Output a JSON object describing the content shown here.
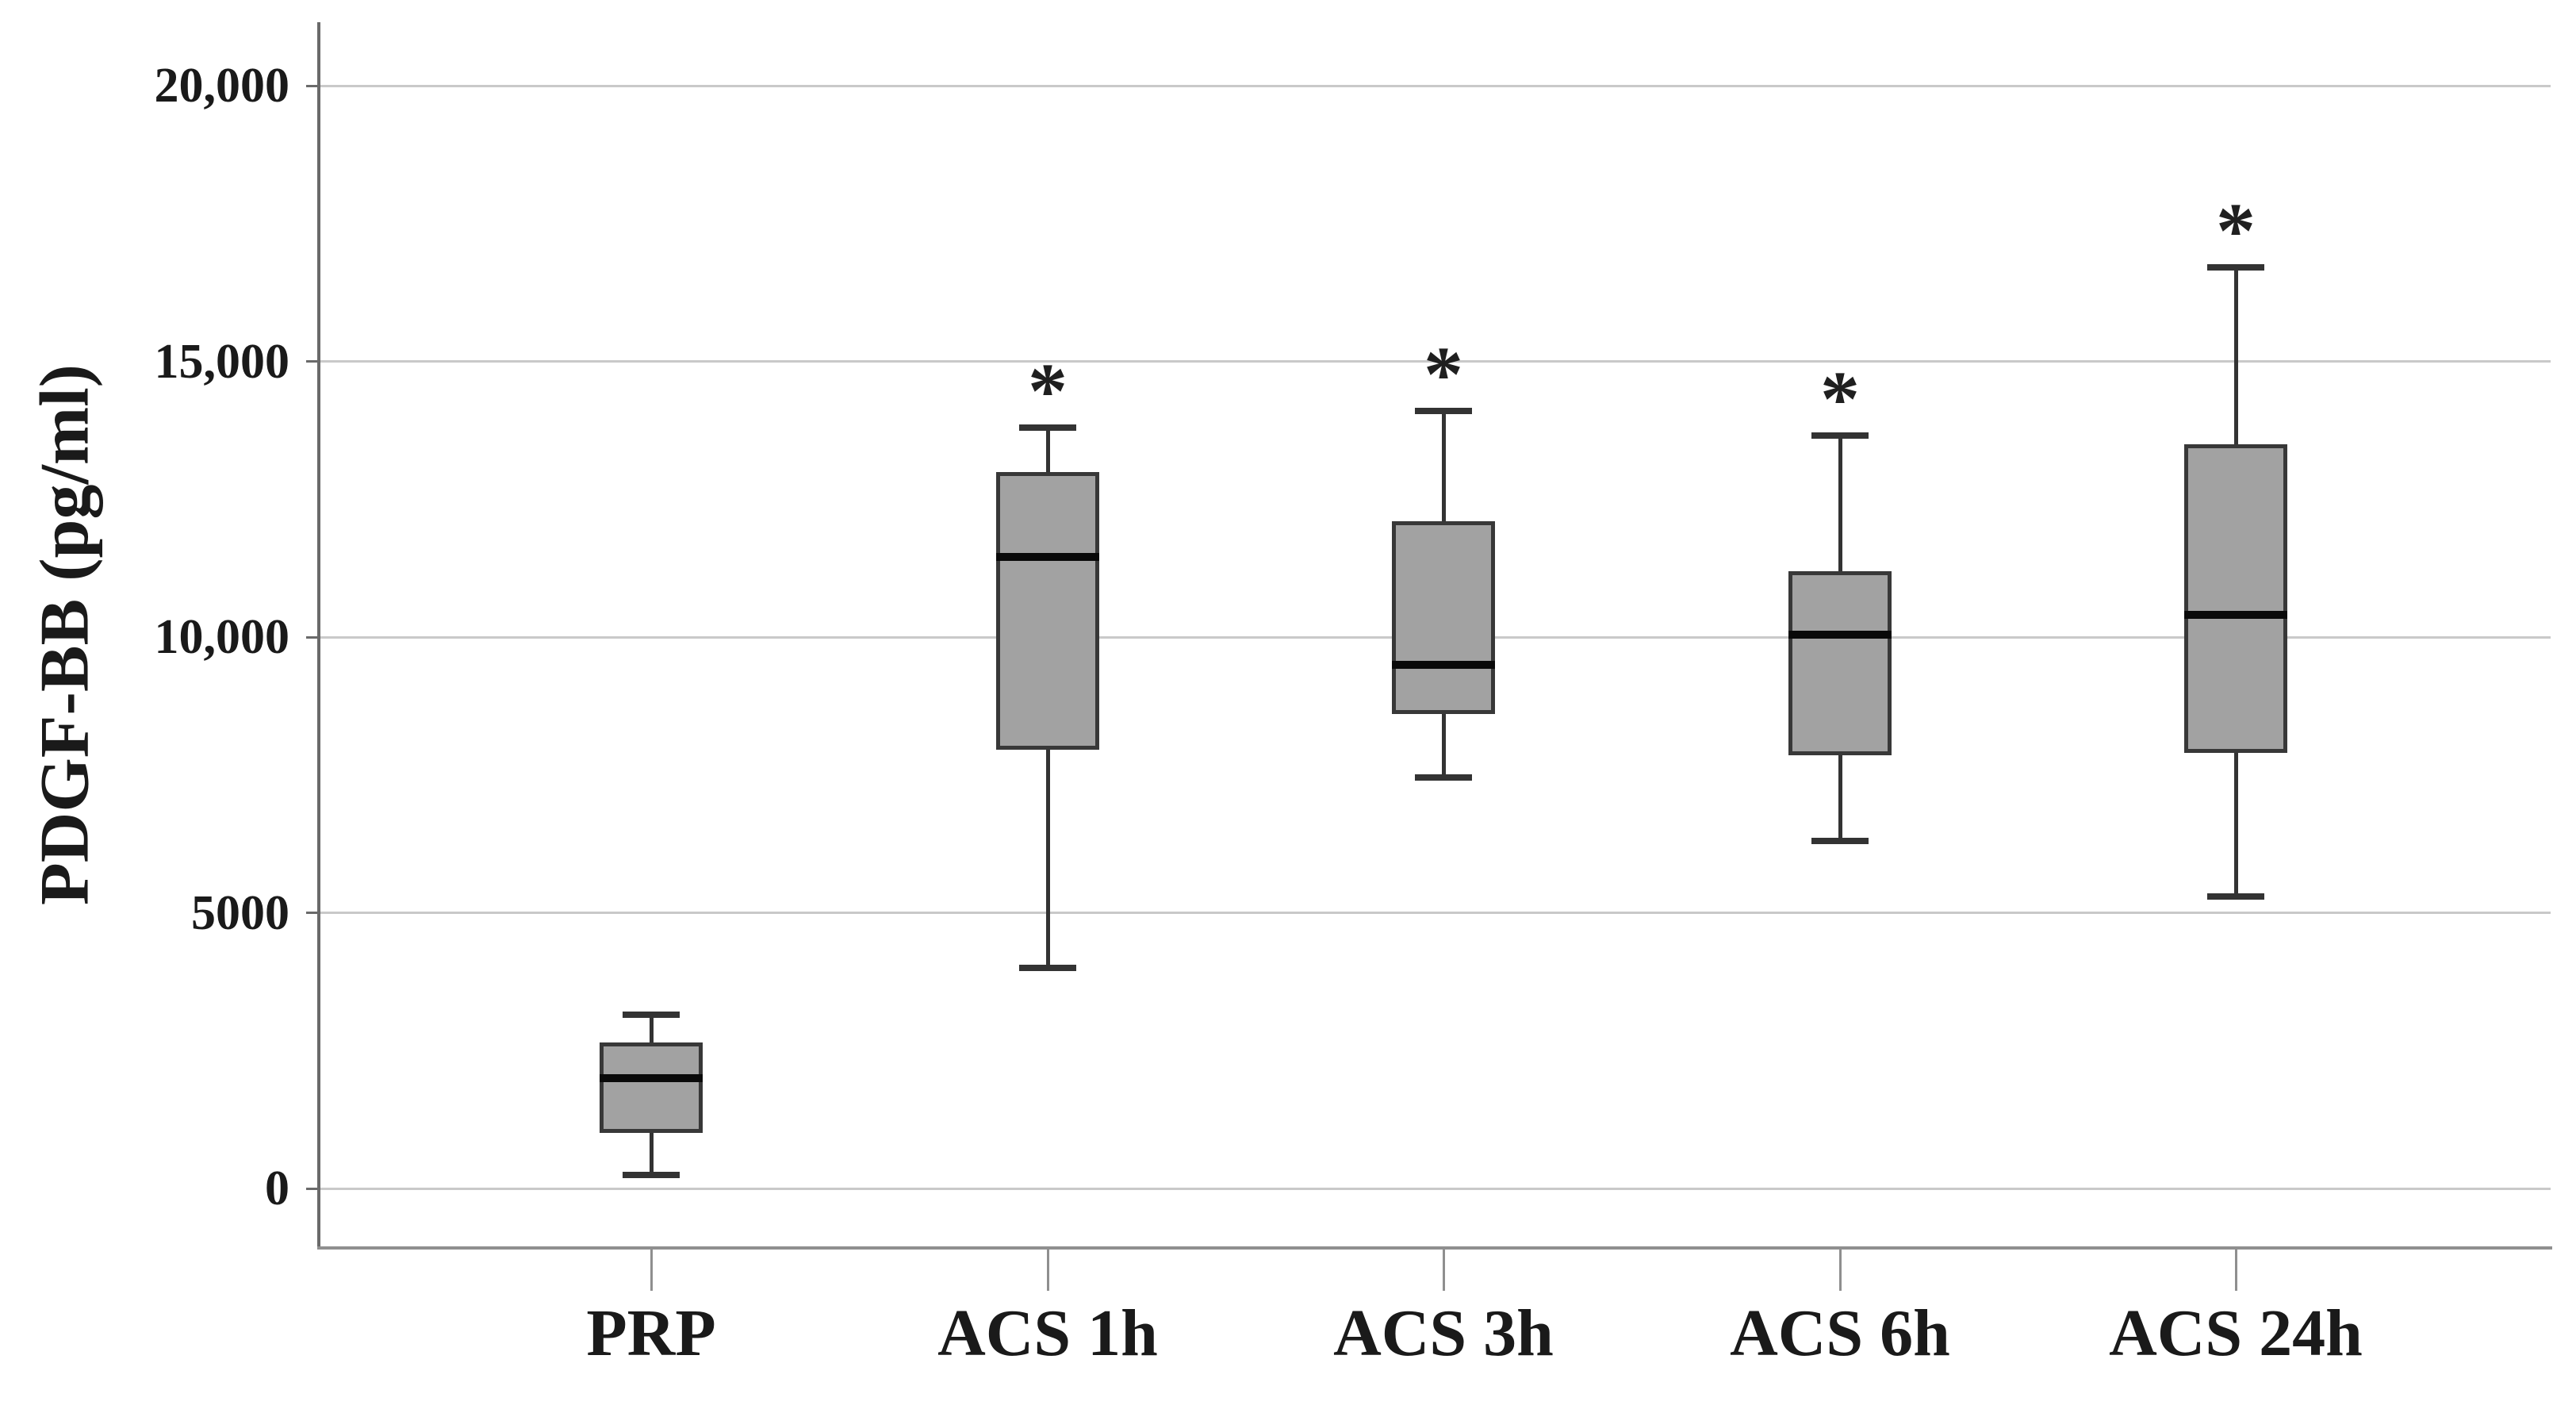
{
  "chart_data": {
    "type": "box",
    "title": "",
    "xlabel": "",
    "ylabel": "PDGF-BB (pg/ml)",
    "ylim": [
      0,
      21000
    ],
    "grid": true,
    "legend_position": "none",
    "yticks": [
      {
        "value": 0,
        "label": "0"
      },
      {
        "value": 5000,
        "label": "5000"
      },
      {
        "value": 10000,
        "label": "10,000"
      },
      {
        "value": 15000,
        "label": "15,000"
      },
      {
        "value": 20000,
        "label": "20,000"
      }
    ],
    "categories": [
      "PRP",
      "ACS 1h",
      "ACS 3h",
      "ACS 6h",
      "ACS 24h"
    ],
    "series": [
      {
        "name": "PRP",
        "low": 250,
        "q1": 1000,
        "median": 2000,
        "q3": 2650,
        "high": 3150,
        "significant": false
      },
      {
        "name": "ACS 1h",
        "low": 4000,
        "q1": 7950,
        "median": 11450,
        "q3": 13000,
        "high": 13800,
        "significant": true
      },
      {
        "name": "ACS 3h",
        "low": 7450,
        "q1": 8600,
        "median": 9500,
        "q3": 12100,
        "high": 14100,
        "significant": true
      },
      {
        "name": "ACS 6h",
        "low": 6300,
        "q1": 7850,
        "median": 10050,
        "q3": 11200,
        "high": 13650,
        "significant": true
      },
      {
        "name": "ACS 24h",
        "low": 5300,
        "q1": 7900,
        "median": 10400,
        "q3": 13500,
        "high": 16700,
        "significant": true
      }
    ],
    "significance_marker": "*"
  },
  "style": {
    "background": "#ffffff",
    "box_fill": "#a2a2a2",
    "box_border": "#383838",
    "median_color": "#0a0a0a",
    "whisker_color": "#333333",
    "grid_color": "#c9c9c9",
    "axis_color": "#6a6a6a",
    "baseline_color": "#8f8f8f",
    "text_color": "#1a1a1a",
    "asterisk_color": "#1f1f1f"
  }
}
